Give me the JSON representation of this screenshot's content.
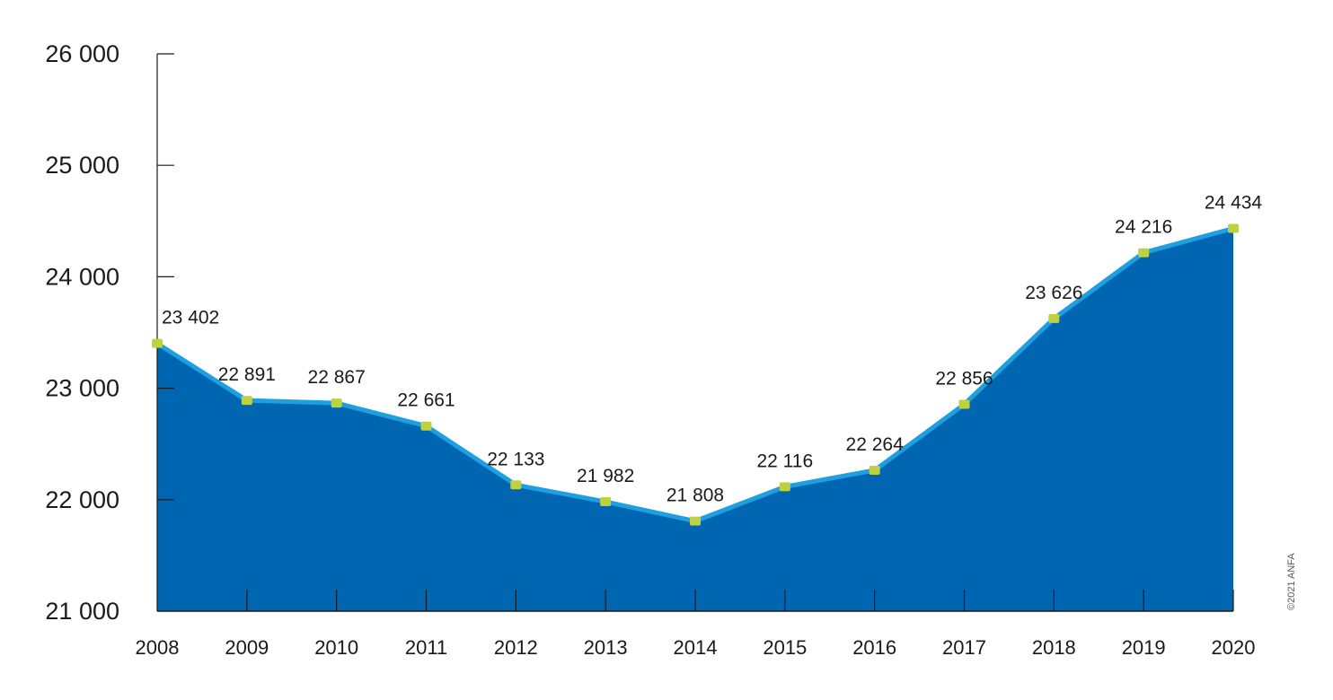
{
  "chart_data": {
    "type": "area",
    "x": [
      "2008",
      "2009",
      "2010",
      "2011",
      "2012",
      "2013",
      "2014",
      "2015",
      "2016",
      "2017",
      "2018",
      "2019",
      "2020"
    ],
    "values": [
      23402,
      22891,
      22867,
      22661,
      22133,
      21982,
      21808,
      22116,
      22264,
      22856,
      23626,
      24216,
      24434
    ],
    "data_labels": [
      "23 402",
      "22 891",
      "22 867",
      "22 661",
      "22 133",
      "21 982",
      "21 808",
      "22 116",
      "22 264",
      "22 856",
      "23 626",
      "24 216",
      "24 434"
    ],
    "yticks": [
      21000,
      22000,
      23000,
      24000,
      25000,
      26000
    ],
    "ytick_labels": [
      "21 000",
      "22 000",
      "23 000",
      "24 000",
      "25 000",
      "26 000"
    ],
    "ylim": [
      21000,
      26000
    ],
    "title": "",
    "xlabel": "",
    "ylabel": "",
    "grid": false,
    "legend": "none",
    "highlight_index": 12,
    "colors": {
      "area_fill": "#0066b1",
      "line": "#1e9fe0",
      "marker": "#bfd141",
      "highlight_label": "#e0261b",
      "axis": "#1a1a1a"
    }
  },
  "footer": {
    "copyright": "©2021 ANFA"
  }
}
